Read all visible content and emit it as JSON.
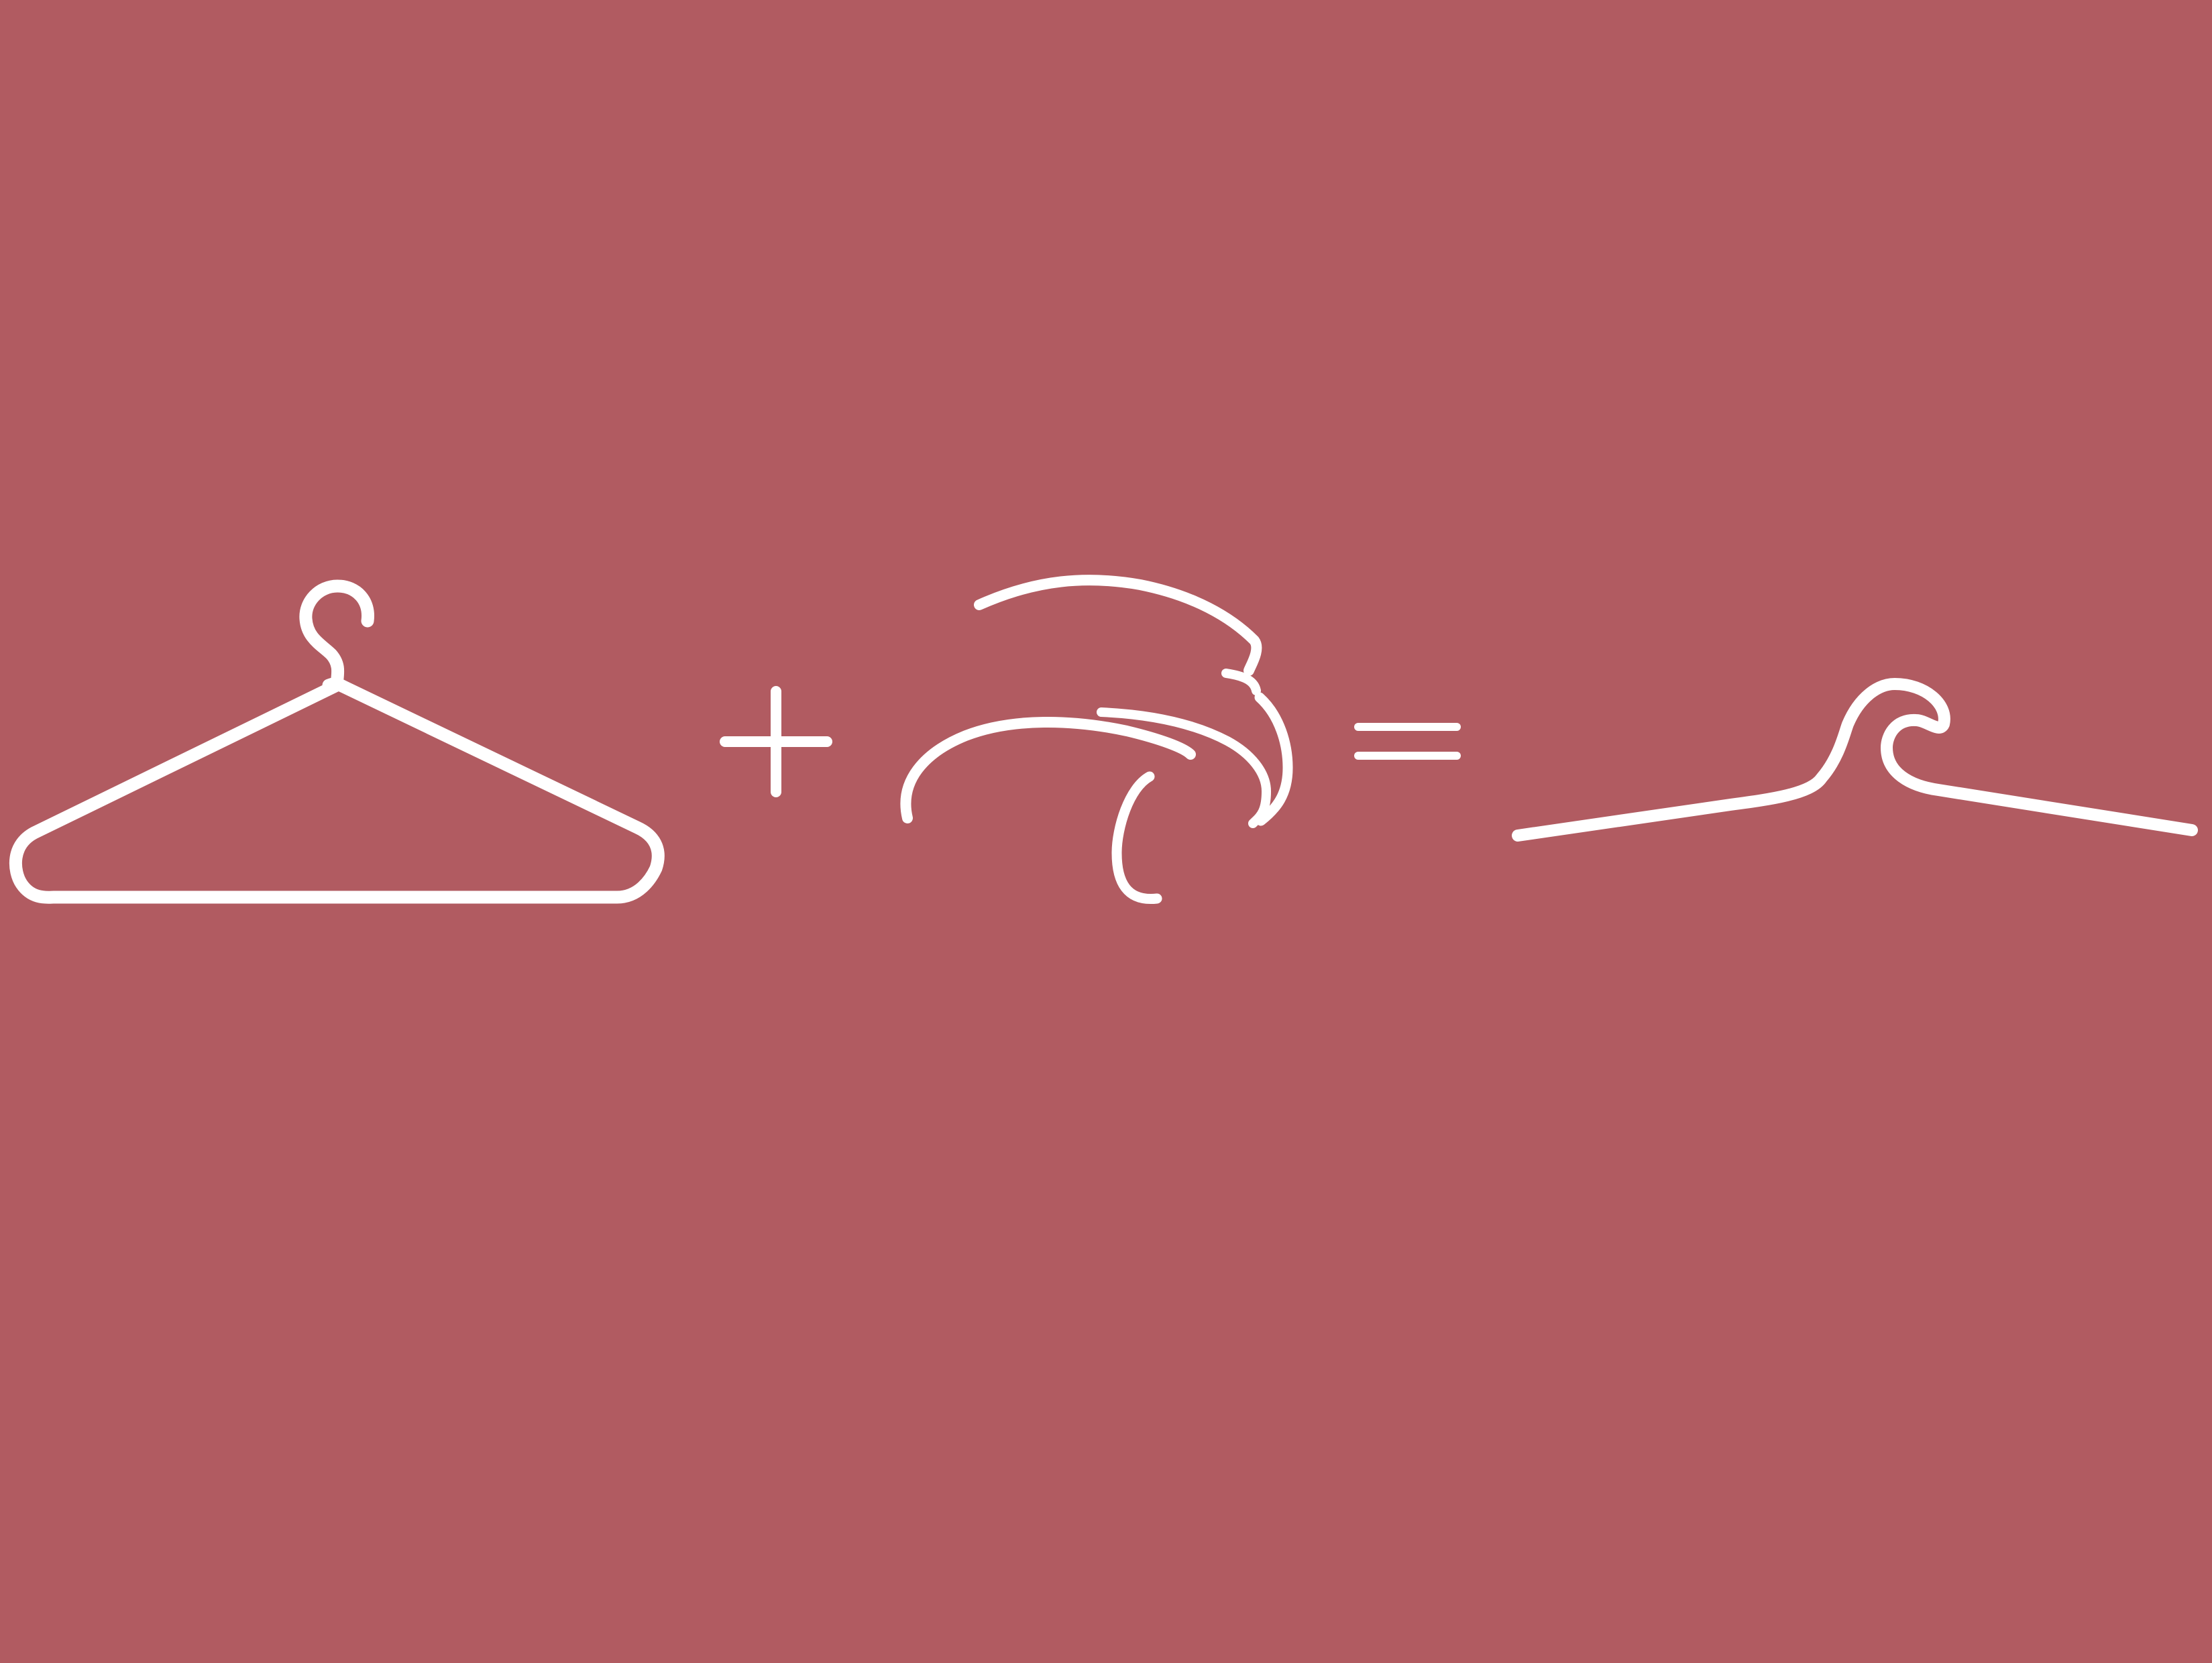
{
  "scene": {
    "background_color": "#b15b61",
    "foreground_color": "#ffffff",
    "equation": [
      {
        "kind": "icon",
        "name": "hanger-icon"
      },
      {
        "kind": "operator",
        "name": "plus-sign-icon"
      },
      {
        "kind": "icon",
        "name": "wave-icon"
      },
      {
        "kind": "operator",
        "name": "equals-sign-icon"
      },
      {
        "kind": "icon",
        "name": "hanger-wave-logo-icon"
      }
    ]
  }
}
